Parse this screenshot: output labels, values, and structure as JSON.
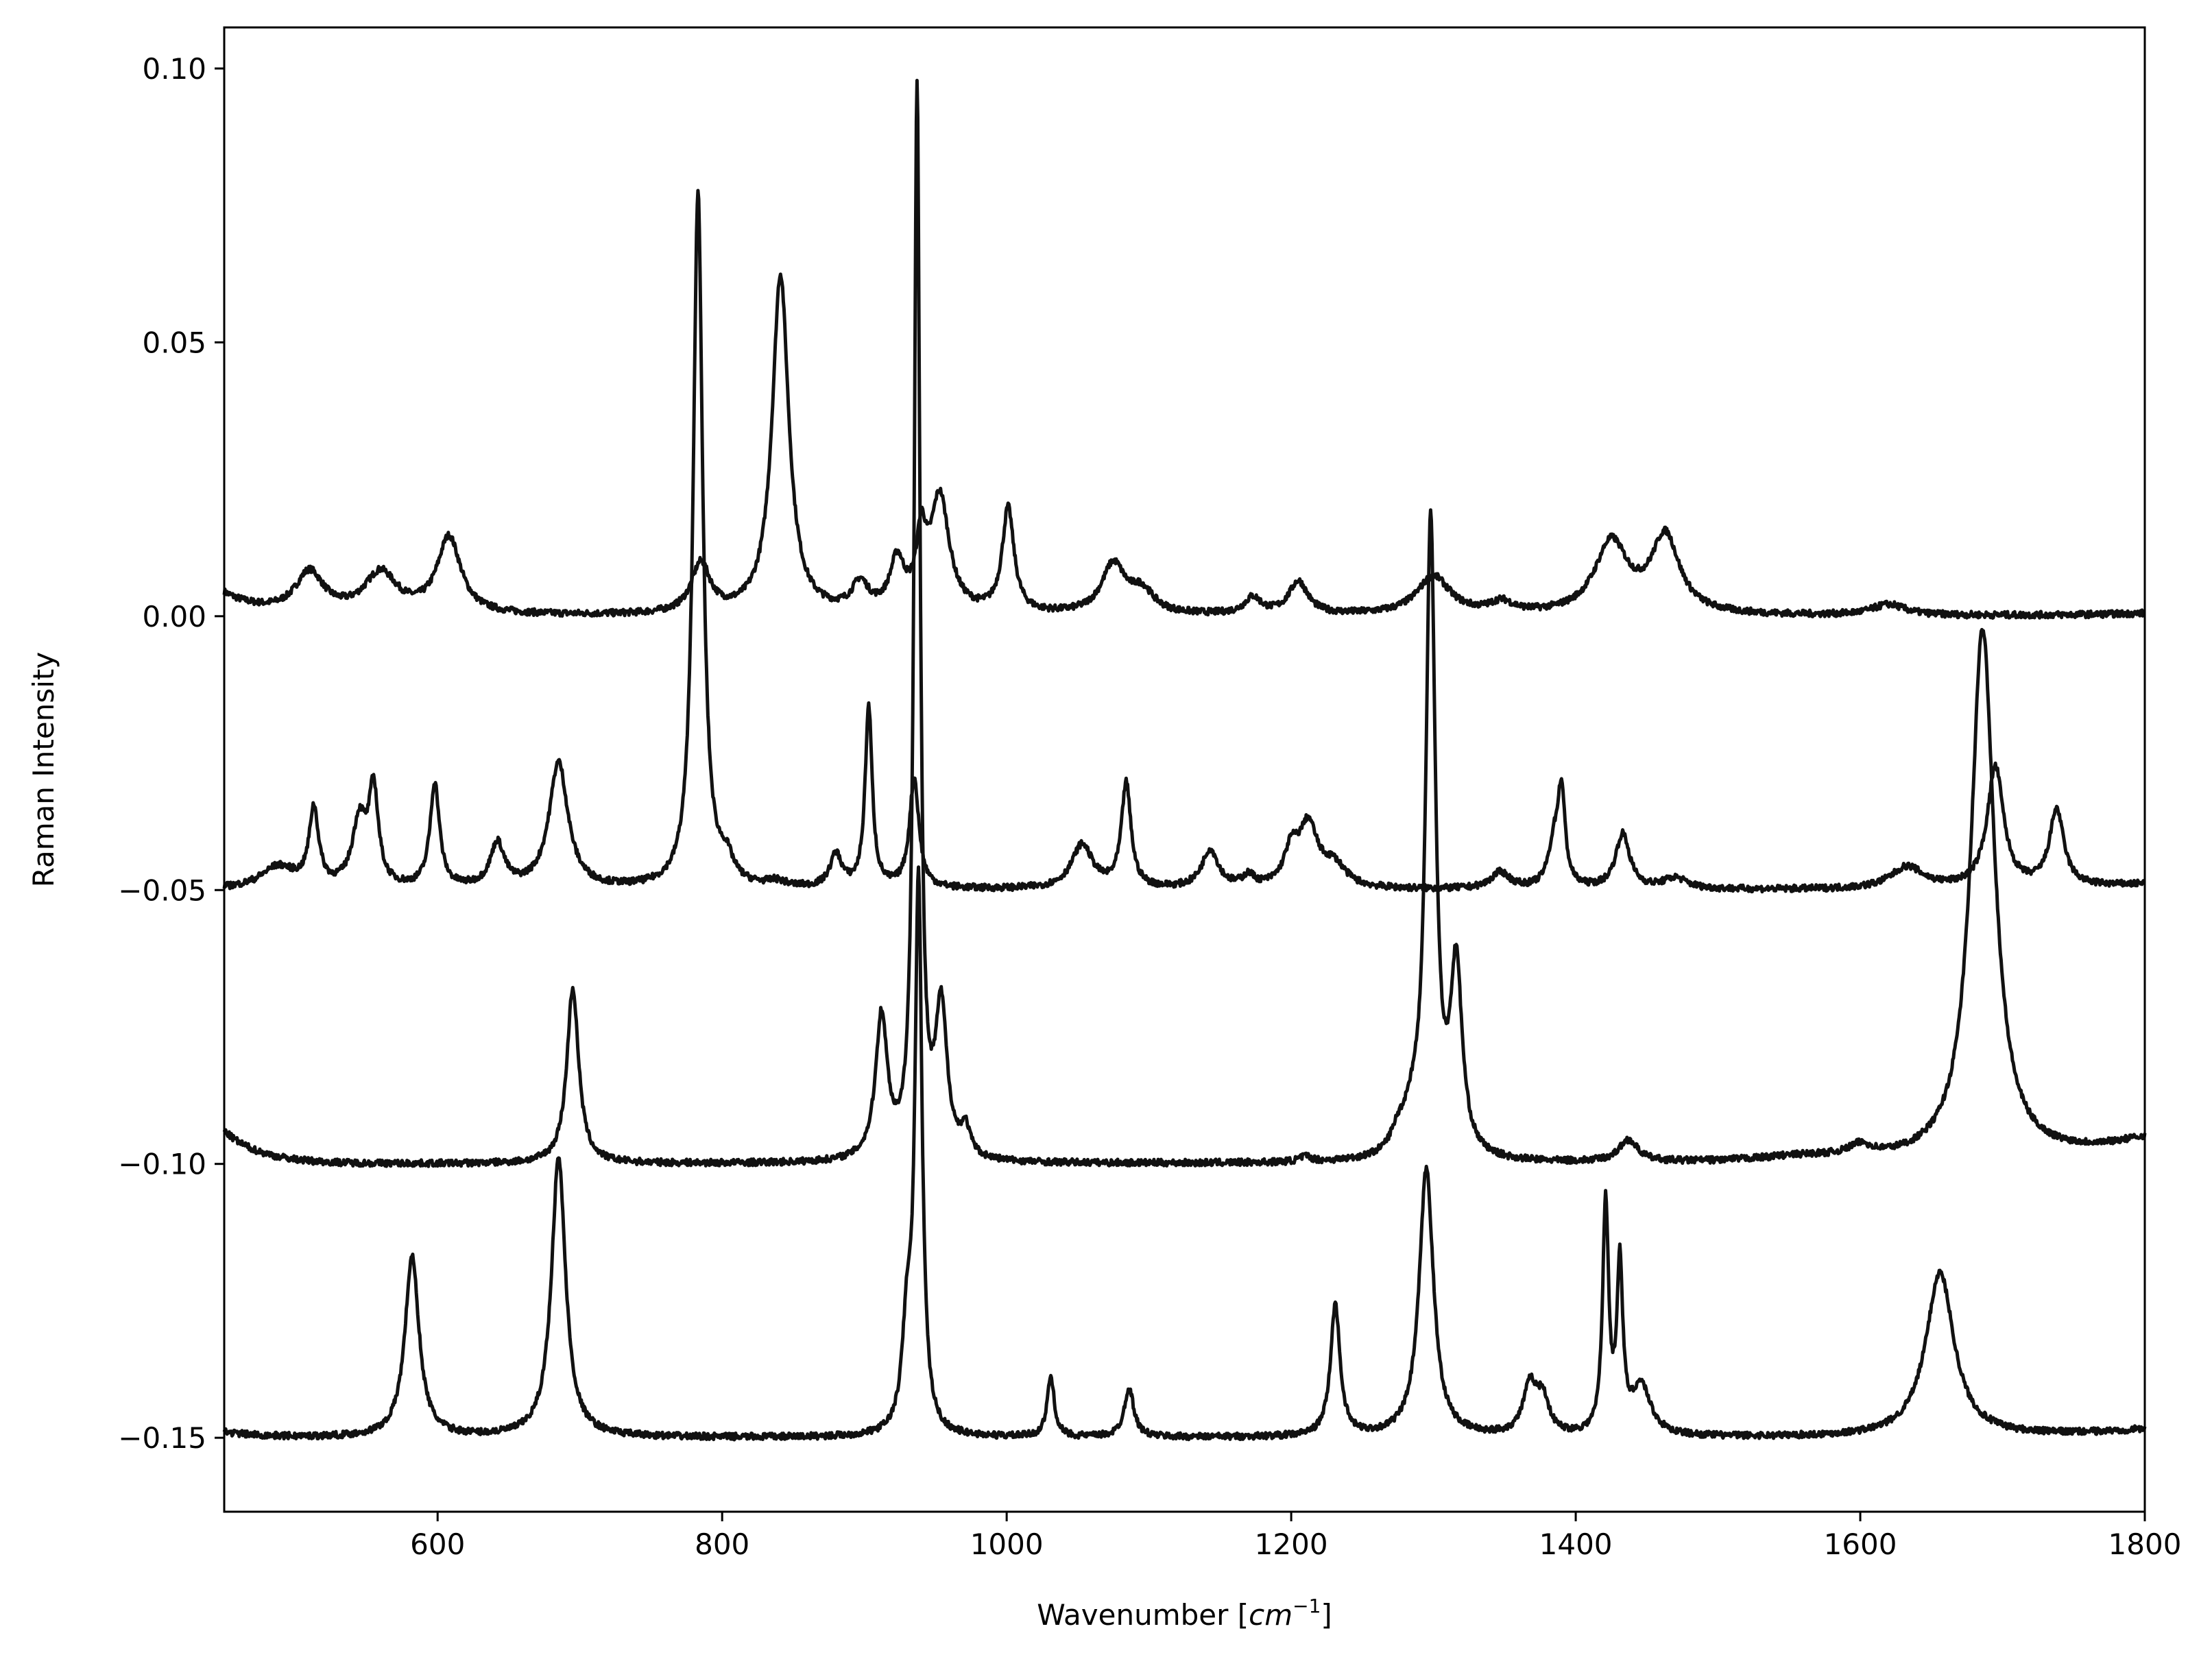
{
  "chart_data": {
    "type": "line",
    "title": "",
    "xlabel_text": "Wavenumber [",
    "xlabel_unit": "cm",
    "xlabel_exp": "−1",
    "xlabel_close": "]",
    "ylabel": "Raman Intensity",
    "xlim": [
      450,
      1800
    ],
    "ylim": [
      -0.1635,
      0.1075
    ],
    "xticks": [
      600,
      800,
      1000,
      1200,
      1400,
      1600,
      1800
    ],
    "xtick_labels": [
      "600",
      "800",
      "1000",
      "1200",
      "1400",
      "1600",
      "1800"
    ],
    "yticks": [
      0.1,
      0.05,
      0.0,
      -0.05,
      -0.1,
      -0.15
    ],
    "ytick_labels": [
      "0.10",
      "0.05",
      "0.00",
      "−0.05",
      "−0.10",
      "−0.15"
    ],
    "grid": false,
    "legend": false,
    "line_color": "#111111",
    "series": [
      {
        "baseline": 0.0,
        "start_value": 0.004,
        "end_value": 0.0005,
        "peaks": [
          [
            510,
            0.0075,
            12
          ],
          [
            560,
            0.0075,
            14
          ],
          [
            608,
            0.014,
            10
          ],
          [
            785,
            0.009,
            8
          ],
          [
            841,
            0.062,
            7
          ],
          [
            897,
            0.005,
            7
          ],
          [
            923,
            0.009,
            6
          ],
          [
            940,
            0.012,
            4
          ],
          [
            953,
            0.021,
            8
          ],
          [
            1001,
            0.019,
            5
          ],
          [
            1075,
            0.009,
            10
          ],
          [
            1095,
            0.004,
            10
          ],
          [
            1173,
            0.003,
            7
          ],
          [
            1205,
            0.006,
            8
          ],
          [
            1300,
            0.007,
            14
          ],
          [
            1348,
            0.002,
            10
          ],
          [
            1425,
            0.013,
            14
          ],
          [
            1463,
            0.014,
            12
          ],
          [
            1620,
            0.002,
            14
          ]
        ]
      },
      {
        "baseline": -0.05,
        "start_value": -0.05,
        "end_value": -0.049,
        "peaks": [
          [
            488,
            0.004,
            15
          ],
          [
            513,
            0.014,
            4
          ],
          [
            545,
            0.012,
            6
          ],
          [
            555,
            0.017,
            4
          ],
          [
            598,
            0.019,
            4
          ],
          [
            642,
            0.008,
            6
          ],
          [
            685,
            0.023,
            8
          ],
          [
            783,
            0.127,
            4
          ],
          [
            803,
            0.004,
            6
          ],
          [
            838,
            0.001,
            8
          ],
          [
            880,
            0.006,
            5
          ],
          [
            903,
            0.033,
            3
          ],
          [
            935,
            0.02,
            4
          ],
          [
            1053,
            0.008,
            9
          ],
          [
            1084,
            0.019,
            4
          ],
          [
            1143,
            0.007,
            7
          ],
          [
            1170,
            0.002,
            5
          ],
          [
            1200,
            0.006,
            6
          ],
          [
            1212,
            0.011,
            8
          ],
          [
            1230,
            0.004,
            10
          ],
          [
            1347,
            0.003,
            8
          ],
          [
            1385,
            0.008,
            5
          ],
          [
            1390,
            0.016,
            3
          ],
          [
            1433,
            0.01,
            6
          ],
          [
            1470,
            0.002,
            10
          ],
          [
            1633,
            0.004,
            14
          ],
          [
            1695,
            0.022,
            7
          ],
          [
            1738,
            0.014,
            6
          ]
        ]
      },
      {
        "baseline": -0.1,
        "start_value": -0.094,
        "end_value": -0.0955,
        "peaks": [
          [
            695,
            0.032,
            5
          ],
          [
            912,
            0.026,
            5
          ],
          [
            937,
            0.195,
            2.5
          ],
          [
            954,
            0.027,
            5
          ],
          [
            971,
            0.005,
            4
          ],
          [
            1210,
            0.001,
            5
          ],
          [
            1275,
            0.003,
            6
          ],
          [
            1285,
            0.006,
            8
          ],
          [
            1298,
            0.115,
            4
          ],
          [
            1316,
            0.034,
            5
          ],
          [
            1437,
            0.004,
            8
          ],
          [
            1560,
            0.001,
            40
          ],
          [
            1600,
            0.002,
            10
          ],
          [
            1686,
            0.097,
            10
          ]
        ]
      },
      {
        "baseline": -0.15,
        "start_value": -0.149,
        "end_value": -0.1485,
        "peaks": [
          [
            582,
            0.033,
            6
          ],
          [
            685,
            0.051,
            6
          ],
          [
            930,
            0.018,
            4
          ],
          [
            938,
            0.1,
            3
          ],
          [
            1031,
            0.011,
            3
          ],
          [
            1086,
            0.009,
            4
          ],
          [
            1231,
            0.024,
            4
          ],
          [
            1295,
            0.049,
            6
          ],
          [
            1368,
            0.009,
            6
          ],
          [
            1377,
            0.006,
            5
          ],
          [
            1421,
            0.042,
            2.5
          ],
          [
            1431,
            0.03,
            2.5
          ],
          [
            1446,
            0.009,
            8
          ],
          [
            1656,
            0.03,
            12
          ]
        ]
      }
    ]
  }
}
